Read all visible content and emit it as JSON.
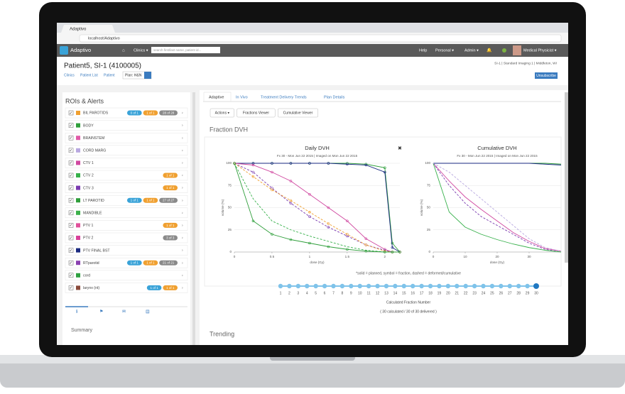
{
  "browser": {
    "tab": "Adaptivo",
    "url": "localhost/Adaptivo"
  },
  "navbar": {
    "brand": "Adaptivo",
    "clinics": "Clinics ▾",
    "search_placeholder": "search first/last name, patient id...",
    "help": "Help",
    "personal": "Personal ▾",
    "admin": "Admin ▾",
    "user": "Medical Physicist ▾"
  },
  "header": {
    "title": "Patient5, SI-1 (4100005)",
    "breadcrumb": [
      "Clinics",
      "Patient List",
      "Patient"
    ],
    "plan": "Plan: H&N",
    "site": "SI-1 | Standard Imaging 1 | Middleton, WI",
    "unsubscribe": "Unsubscribe"
  },
  "rois": {
    "title": "ROIs & Alerts",
    "items": [
      {
        "name": "BIL PAROTIDS",
        "color": "#f0a030",
        "badges": [
          {
            "text": "0 of 1",
            "color": "#3aa3d8"
          },
          {
            "text": "1 of 1",
            "color": "#f0a030"
          },
          {
            "text": "28 of 28",
            "color": "#8a8a8a"
          }
        ]
      },
      {
        "name": "BODY",
        "color": "#2e9e3a",
        "badges": []
      },
      {
        "name": "BRAINSTEM",
        "color": "#e05aa8",
        "badges": []
      },
      {
        "name": "CORD MARG",
        "color": "#b8a8e0",
        "badges": []
      },
      {
        "name": "CTV 1",
        "color": "#d048a0",
        "badges": []
      },
      {
        "name": "CTV 2",
        "color": "#36b04a",
        "badges": [
          {
            "text": "1 of 1",
            "color": "#f0a030"
          }
        ]
      },
      {
        "name": "CTV 3",
        "color": "#7a3ab0",
        "badges": [
          {
            "text": "1 of 1",
            "color": "#f0a030"
          }
        ]
      },
      {
        "name": "LT PAROTID",
        "color": "#2e9e3a",
        "badges": [
          {
            "text": "1 of 1",
            "color": "#3aa3d8"
          },
          {
            "text": "1 of 1",
            "color": "#f0a030"
          },
          {
            "text": "27 of 27",
            "color": "#8a8a8a"
          }
        ]
      },
      {
        "name": "MANDIBLE",
        "color": "#3cb04a",
        "badges": []
      },
      {
        "name": "PTV 1",
        "color": "#e0509a",
        "badges": [
          {
            "text": "1 of 1",
            "color": "#f0a030"
          }
        ]
      },
      {
        "name": "PTV 2",
        "color": "#d8409a",
        "badges": [
          {
            "text": "3 of 3",
            "color": "#8a8a8a"
          }
        ]
      },
      {
        "name": "PTV FINAL BST",
        "color": "#1a2a80",
        "badges": []
      },
      {
        "name": "RTparotid",
        "color": "#8a40b0",
        "badges": [
          {
            "text": "1 of 1",
            "color": "#3aa3d8"
          },
          {
            "text": "1 of 1",
            "color": "#f0a030"
          },
          {
            "text": "21 of 21",
            "color": "#8a8a8a"
          }
        ]
      },
      {
        "name": "cord",
        "color": "#2ea040",
        "badges": []
      },
      {
        "name": "larynx (nt)",
        "color": "#8a4a3a",
        "badges": [
          {
            "text": "1 of 1",
            "color": "#3aa3d8"
          },
          {
            "text": "1 of 1",
            "color": "#f0a030"
          }
        ]
      }
    ]
  },
  "summary": "Summary",
  "tabs": [
    "Adaptive",
    "In Vivo",
    "Treatment Delivery Trends",
    "Plan Details"
  ],
  "buttons": [
    "Actions ▾",
    "Fractions Viewer",
    "Cumulative Viewer"
  ],
  "section": "Fraction DVH",
  "chart_data": [
    {
      "type": "line",
      "title": "Daily DVH",
      "subtitle": "Fx 30 - Mon Jun 22 2015 | Imaged on Mon Jun 22 2015",
      "xlabel": "dose (Gy)",
      "ylabel": "volume (%)",
      "x": [
        0,
        0.25,
        0.5,
        0.75,
        1,
        1.25,
        1.5,
        1.75,
        2,
        2.1,
        2.2
      ],
      "xlim": [
        0,
        2.2
      ],
      "xticks": [
        0,
        0.5,
        1,
        1.5,
        2
      ],
      "ylim": [
        0,
        100
      ],
      "yticks": [
        0,
        25,
        50,
        75,
        100
      ],
      "series": [
        {
          "color": "#2e9e3a",
          "dashed": false,
          "markers": true,
          "values": [
            100,
            100,
            100,
            100,
            100,
            100,
            100,
            99,
            95,
            10,
            0
          ]
        },
        {
          "color": "#1a2a80",
          "dashed": false,
          "markers": true,
          "values": [
            100,
            100,
            100,
            100,
            100,
            100,
            99,
            98,
            90,
            5,
            0
          ]
        },
        {
          "color": "#d048a0",
          "dashed": false,
          "markers": true,
          "values": [
            100,
            98,
            90,
            80,
            65,
            50,
            35,
            15,
            3,
            0,
            0
          ]
        },
        {
          "color": "#7a3ab0",
          "dashed": true,
          "markers": true,
          "values": [
            100,
            90,
            72,
            55,
            40,
            28,
            18,
            8,
            2,
            0,
            0
          ]
        },
        {
          "color": "#36b04a",
          "dashed": true,
          "markers": false,
          "values": [
            100,
            60,
            35,
            25,
            18,
            12,
            6,
            2,
            0,
            0,
            0
          ]
        },
        {
          "color": "#f0a030",
          "dashed": true,
          "markers": true,
          "values": [
            100,
            85,
            70,
            58,
            45,
            32,
            20,
            8,
            1,
            0,
            0
          ]
        },
        {
          "color": "#2e9e3a",
          "dashed": false,
          "markers": true,
          "values": [
            100,
            35,
            20,
            14,
            10,
            6,
            3,
            1,
            0,
            0,
            0
          ]
        }
      ]
    },
    {
      "type": "line",
      "title": "Cumulative DVH",
      "subtitle": "Fx 30 - Mon Jun 22 2015 | Imaged on Mon Jun 22 2015",
      "xlabel": "dose (Gy)",
      "ylabel": "volume (%)",
      "x": [
        0,
        5,
        10,
        15,
        20,
        25,
        30,
        35,
        40
      ],
      "xlim": [
        0,
        40
      ],
      "xticks": [
        0,
        10,
        20,
        30
      ],
      "ylim": [
        0,
        100
      ],
      "yticks": [
        0,
        25,
        50,
        75,
        100
      ],
      "series": [
        {
          "color": "#2e9e3a",
          "dashed": false,
          "markers": false,
          "values": [
            100,
            100,
            100,
            100,
            100,
            100,
            100,
            100,
            99
          ]
        },
        {
          "color": "#1a2a80",
          "dashed": false,
          "markers": false,
          "values": [
            100,
            100,
            100,
            100,
            100,
            100,
            100,
            99,
            98
          ]
        },
        {
          "color": "#d048a0",
          "dashed": false,
          "markers": false,
          "values": [
            100,
            80,
            62,
            48,
            35,
            22,
            12,
            4,
            1
          ]
        },
        {
          "color": "#7a3ab0",
          "dashed": true,
          "markers": false,
          "values": [
            100,
            75,
            55,
            40,
            30,
            20,
            10,
            3,
            0
          ]
        },
        {
          "color": "#36b04a",
          "dashed": false,
          "markers": false,
          "values": [
            100,
            45,
            28,
            20,
            14,
            9,
            5,
            2,
            0
          ]
        },
        {
          "color": "#b8a8e0",
          "dashed": true,
          "markers": false,
          "values": [
            100,
            90,
            75,
            60,
            45,
            30,
            15,
            5,
            1
          ]
        }
      ]
    }
  ],
  "footnote": "*solid = planned, symbol = fraction, dashed = deformed/cumulative",
  "slider": {
    "ticks": [
      1,
      2,
      3,
      4,
      5,
      6,
      7,
      8,
      9,
      10,
      11,
      12,
      13,
      14,
      15,
      16,
      17,
      18,
      19,
      20,
      21,
      22,
      23,
      24,
      25,
      26,
      27,
      28,
      29,
      30
    ],
    "value": 30,
    "label": "Calculated Fraction Number",
    "status": "( 30 calculated / 30 of 30 delivered )"
  },
  "trending": "Trending"
}
